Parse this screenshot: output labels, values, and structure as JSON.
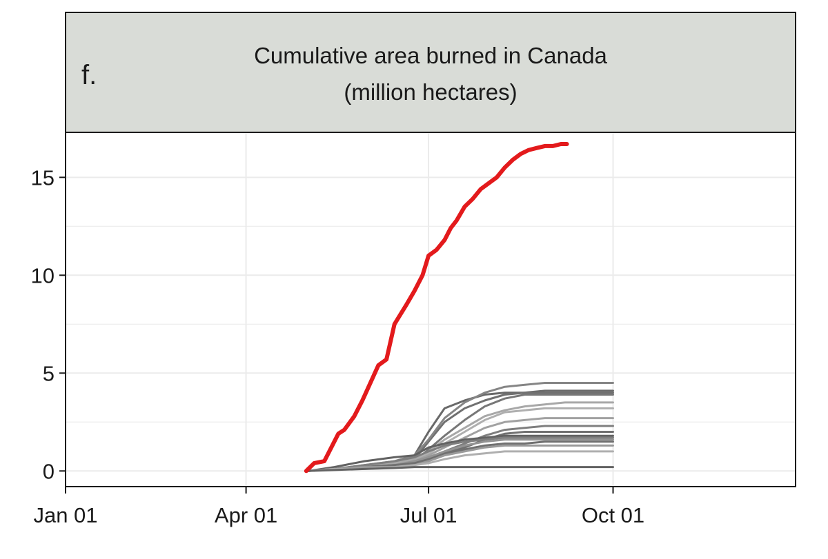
{
  "panel": {
    "label": "f.",
    "title_line1": "Cumulative area burned in Canada",
    "title_line2": "(million hectares)"
  },
  "colors": {
    "strip_bg": "#d9dcd7",
    "highlight": "#e31a1c",
    "history": "#555555",
    "grid": "#ebebeb"
  },
  "chart_data": {
    "type": "line",
    "title": "Cumulative area burned in Canada (million hectares)",
    "xlabel": "",
    "ylabel": "",
    "x_unit": "day of year",
    "xlim": [
      1,
      365
    ],
    "ylim": [
      -0.8,
      17.3
    ],
    "x_ticks": [
      {
        "label": "Jan 01",
        "day": 1
      },
      {
        "label": "Apr 01",
        "day": 91
      },
      {
        "label": "Jul 01",
        "day": 182
      },
      {
        "label": "Oct 01",
        "day": 274
      }
    ],
    "y_ticks": [
      0,
      5,
      10,
      15
    ],
    "grid": true,
    "legend": "none",
    "highlight_series": {
      "x": [
        121,
        125,
        130,
        134,
        137,
        140,
        145,
        149,
        153,
        157,
        161,
        165,
        168,
        171,
        175,
        179,
        182,
        186,
        190,
        193,
        196,
        200,
        204,
        208,
        212,
        216,
        220,
        224,
        228,
        232,
        236,
        240,
        244,
        248,
        251
      ],
      "values": [
        0,
        0.4,
        0.5,
        1.3,
        1.9,
        2.1,
        2.8,
        3.6,
        4.5,
        5.4,
        5.7,
        7.5,
        8.0,
        8.5,
        9.2,
        10.0,
        11.0,
        11.3,
        11.8,
        12.4,
        12.8,
        13.5,
        13.9,
        14.4,
        14.7,
        15.0,
        15.5,
        15.9,
        16.2,
        16.4,
        16.5,
        16.6,
        16.6,
        16.7,
        16.7
      ],
      "color": "#e31a1c"
    },
    "history_x": [
      122,
      135,
      150,
      165,
      175,
      182,
      190,
      200,
      210,
      220,
      230,
      240,
      250,
      260,
      266,
      274
    ],
    "history_series": [
      {
        "values": [
          0,
          0.1,
          0.2,
          0.3,
          0.8,
          2.0,
          3.2,
          3.6,
          3.9,
          4.0,
          4.0,
          4.1,
          4.1,
          4.1,
          4.1,
          4.1
        ],
        "shade": 0.25
      },
      {
        "values": [
          0,
          0.1,
          0.2,
          0.3,
          0.6,
          1.5,
          2.5,
          3.2,
          3.6,
          3.9,
          4.0,
          4.0,
          4.0,
          4.0,
          4.0,
          4.0
        ],
        "shade": 0.3
      },
      {
        "values": [
          0,
          0.1,
          0.2,
          0.3,
          0.5,
          1.1,
          1.8,
          2.6,
          3.3,
          3.7,
          3.9,
          3.9,
          3.9,
          3.9,
          3.9,
          3.9
        ],
        "shade": 0.35
      },
      {
        "values": [
          0,
          0.1,
          0.3,
          0.5,
          0.8,
          1.6,
          2.7,
          3.5,
          4.0,
          4.3,
          4.4,
          4.5,
          4.5,
          4.5,
          4.5,
          4.5
        ],
        "shade": 0.45
      },
      {
        "values": [
          0,
          0.1,
          0.2,
          0.4,
          0.6,
          1.0,
          1.6,
          2.2,
          2.8,
          3.1,
          3.3,
          3.4,
          3.5,
          3.5,
          3.5,
          3.5
        ],
        "shade": 0.7
      },
      {
        "values": [
          0,
          0.1,
          0.2,
          0.3,
          0.5,
          0.9,
          1.4,
          2.0,
          2.6,
          3.0,
          3.1,
          3.2,
          3.2,
          3.2,
          3.2,
          3.2
        ],
        "shade": 0.75
      },
      {
        "values": [
          0,
          0.1,
          0.2,
          0.3,
          0.5,
          0.8,
          1.2,
          1.7,
          2.2,
          2.5,
          2.6,
          2.7,
          2.7,
          2.7,
          2.7,
          2.7
        ],
        "shade": 0.65
      },
      {
        "values": [
          0,
          0.1,
          0.2,
          0.3,
          0.4,
          0.7,
          1.0,
          1.4,
          1.8,
          2.1,
          2.2,
          2.3,
          2.3,
          2.3,
          2.3,
          2.3
        ],
        "shade": 0.4
      },
      {
        "values": [
          0,
          0.1,
          0.2,
          0.3,
          0.4,
          0.6,
          0.9,
          1.2,
          1.6,
          1.9,
          2.0,
          2.0,
          2.0,
          2.0,
          2.0,
          2.0
        ],
        "shade": 0.3
      },
      {
        "values": [
          0,
          0.2,
          0.5,
          0.7,
          0.8,
          1.2,
          1.4,
          1.6,
          1.7,
          1.8,
          1.8,
          1.8,
          1.8,
          1.8,
          1.8,
          1.8
        ],
        "shade": 0.2
      },
      {
        "values": [
          0,
          0.1,
          0.3,
          0.5,
          0.7,
          1.0,
          1.3,
          1.5,
          1.6,
          1.7,
          1.7,
          1.7,
          1.7,
          1.7,
          1.7,
          1.7
        ],
        "shade": 0.4
      },
      {
        "values": [
          0,
          0.1,
          0.2,
          0.3,
          0.5,
          0.7,
          1.0,
          1.3,
          1.5,
          1.6,
          1.6,
          1.6,
          1.6,
          1.6,
          1.6,
          1.6
        ],
        "shade": 0.55
      },
      {
        "values": [
          0,
          0.1,
          0.2,
          0.3,
          0.4,
          0.6,
          0.8,
          1.1,
          1.3,
          1.4,
          1.4,
          1.5,
          1.5,
          1.5,
          1.5,
          1.5
        ],
        "shade": 0.3
      },
      {
        "values": [
          0,
          0.1,
          0.2,
          0.2,
          0.3,
          0.5,
          0.8,
          1.0,
          1.2,
          1.3,
          1.3,
          1.3,
          1.3,
          1.3,
          1.3,
          1.3
        ],
        "shade": 0.6
      },
      {
        "values": [
          0,
          0.1,
          0.1,
          0.2,
          0.3,
          0.4,
          0.6,
          0.8,
          0.9,
          1.0,
          1.0,
          1.0,
          1.0,
          1.0,
          1.0,
          1.0
        ],
        "shade": 0.75
      },
      {
        "values": [
          0,
          0.05,
          0.1,
          0.15,
          0.2,
          0.2,
          0.2,
          0.2,
          0.2,
          0.2,
          0.2,
          0.2,
          0.2,
          0.2,
          0.2,
          0.2
        ],
        "shade": 0.2
      }
    ]
  }
}
